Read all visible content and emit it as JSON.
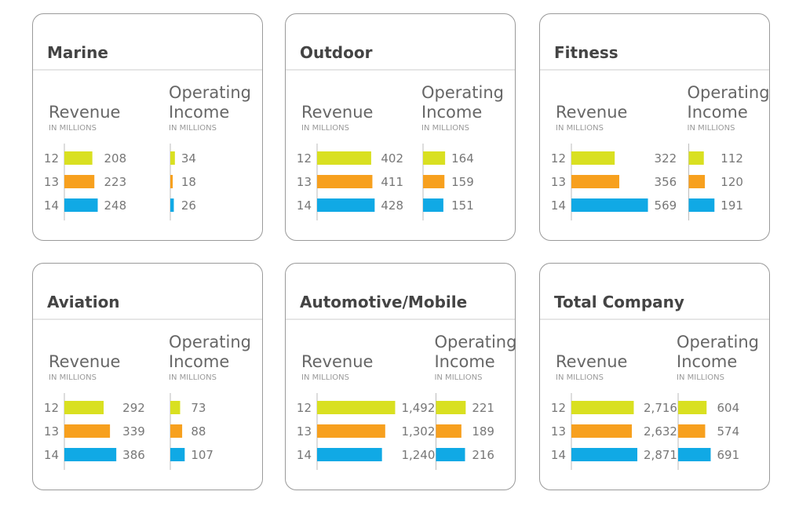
{
  "chart_data": [
    {
      "type": "bar",
      "title": "Marine",
      "categories": [
        "12",
        "13",
        "14"
      ],
      "colors": [
        "#d9e021",
        "#f7a01e",
        "#10a9e5"
      ],
      "series": [
        {
          "name": "Revenue",
          "unit": "IN MILLIONS",
          "values": [
            208,
            223,
            248
          ],
          "xlim": [
            0,
            700
          ]
        },
        {
          "name": "Operating Income",
          "unit": "IN MILLIONS",
          "values": [
            34,
            18,
            26
          ],
          "xlim": [
            0,
            700
          ]
        }
      ]
    },
    {
      "type": "bar",
      "title": "Outdoor",
      "categories": [
        "12",
        "13",
        "14"
      ],
      "colors": [
        "#d9e021",
        "#f7a01e",
        "#10a9e5"
      ],
      "series": [
        {
          "name": "Revenue",
          "unit": "IN MILLIONS",
          "values": [
            402,
            411,
            428
          ],
          "xlim": [
            0,
            700
          ]
        },
        {
          "name": "Operating Income",
          "unit": "IN MILLIONS",
          "values": [
            164,
            159,
            151
          ],
          "xlim": [
            0,
            700
          ]
        }
      ]
    },
    {
      "type": "bar",
      "title": "Fitness",
      "categories": [
        "12",
        "13",
        "14"
      ],
      "colors": [
        "#d9e021",
        "#f7a01e",
        "#10a9e5"
      ],
      "series": [
        {
          "name": "Revenue",
          "unit": "IN MILLIONS",
          "values": [
            322,
            356,
            569
          ],
          "xlim": [
            0,
            700
          ]
        },
        {
          "name": "Operating Income",
          "unit": "IN MILLIONS",
          "values": [
            112,
            120,
            191
          ],
          "xlim": [
            0,
            700
          ]
        }
      ]
    },
    {
      "type": "bar",
      "title": "Aviation",
      "categories": [
        "12",
        "13",
        "14"
      ],
      "colors": [
        "#d9e021",
        "#f7a01e",
        "#10a9e5"
      ],
      "series": [
        {
          "name": "Revenue",
          "unit": "IN MILLIONS",
          "values": [
            292,
            339,
            386
          ],
          "xlim": [
            0,
            700
          ]
        },
        {
          "name": "Operating Income",
          "unit": "IN MILLIONS",
          "values": [
            73,
            88,
            107
          ],
          "xlim": [
            0,
            700
          ]
        }
      ]
    },
    {
      "type": "bar",
      "title": "Automotive/Mobile",
      "categories": [
        "12",
        "13",
        "14"
      ],
      "colors": [
        "#d9e021",
        "#f7a01e",
        "#10a9e5"
      ],
      "series": [
        {
          "name": "Revenue",
          "unit": "IN MILLIONS",
          "values": [
            1492,
            1302,
            1240
          ],
          "value_labels": [
            "1,492",
            "1,302",
            "1,240"
          ],
          "xlim": [
            0,
            1800
          ]
        },
        {
          "name": "Operating Income",
          "unit": "IN MILLIONS",
          "values": [
            221,
            189,
            216
          ],
          "xlim": [
            0,
            700
          ]
        }
      ]
    },
    {
      "type": "bar",
      "title": "Total Company",
      "categories": [
        "12",
        "13",
        "14"
      ],
      "colors": [
        "#d9e021",
        "#f7a01e",
        "#10a9e5"
      ],
      "series": [
        {
          "name": "Revenue",
          "unit": "IN MILLIONS",
          "values": [
            2716,
            2632,
            2871
          ],
          "value_labels": [
            "2,716",
            "2,632",
            "2,871"
          ],
          "xlim": [
            0,
            4100
          ]
        },
        {
          "name": "Operating Income",
          "unit": "IN MILLIONS",
          "values": [
            604,
            574,
            691
          ],
          "xlim": [
            0,
            2000
          ]
        }
      ]
    }
  ]
}
